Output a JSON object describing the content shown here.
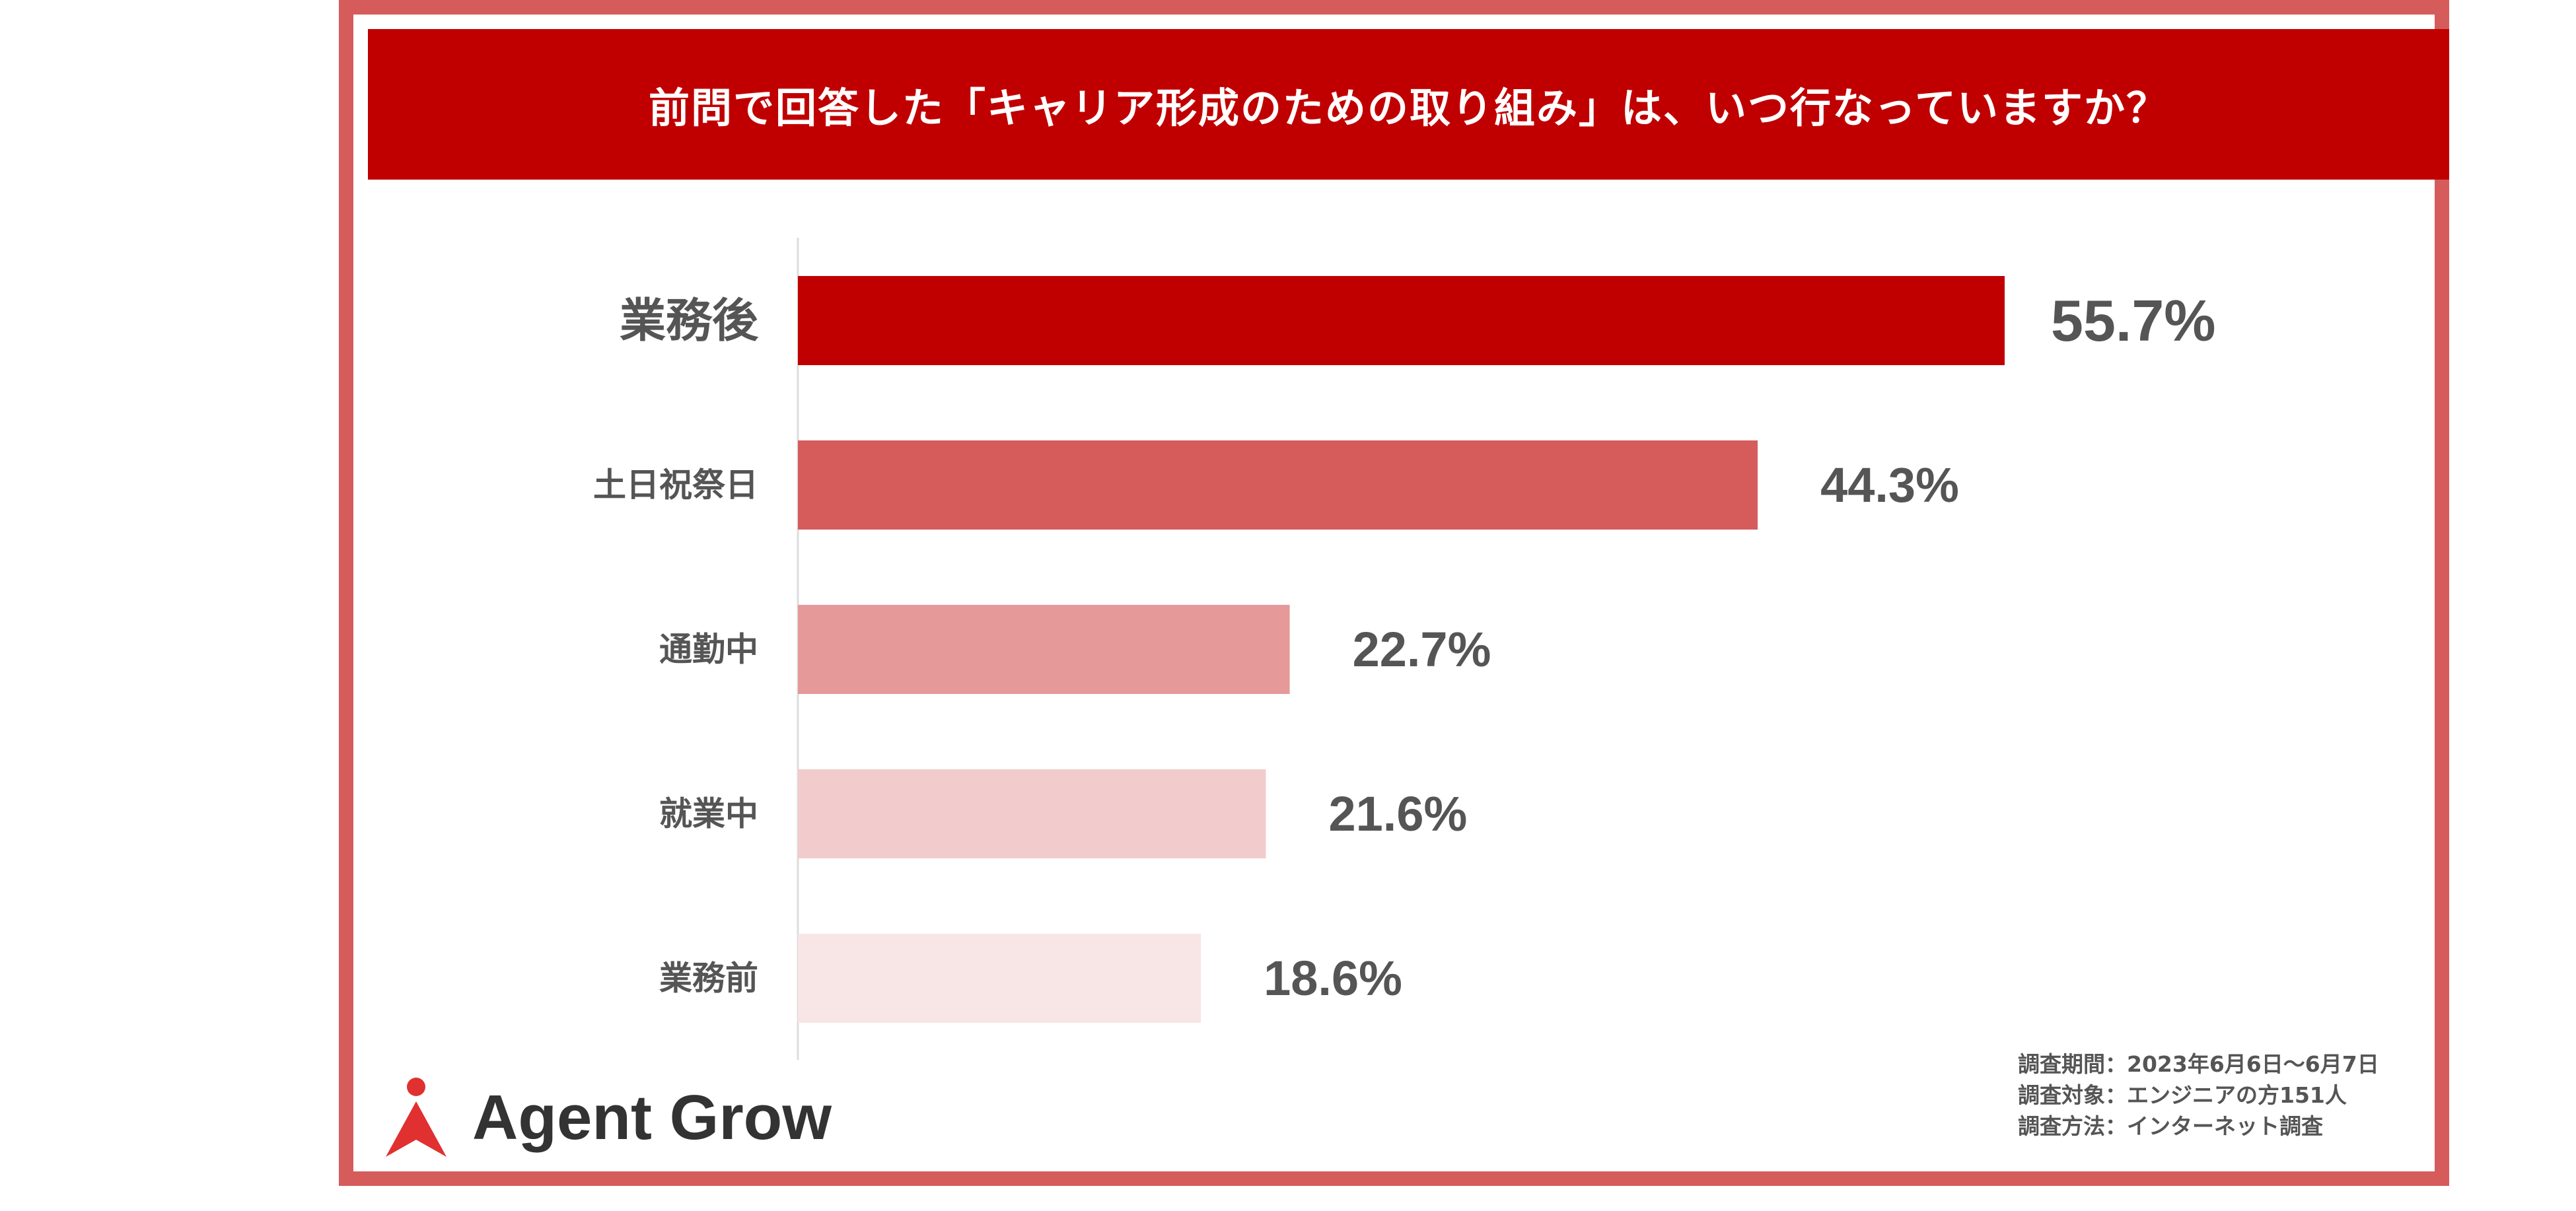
{
  "title": "前問で回答した「キャリア形成のための取り組み」は、いつ行なっていますか？",
  "chart_data": {
    "type": "bar",
    "orientation": "horizontal",
    "categories": [
      "業務後",
      "土日祝祭日",
      "通勤中",
      "就業中",
      "業務前"
    ],
    "values": [
      55.7,
      44.3,
      22.7,
      21.6,
      18.6
    ],
    "value_labels": [
      "55.7%",
      "44.3%",
      "22.7%",
      "21.6%",
      "18.6%"
    ],
    "unit": "%",
    "xlim": [
      0,
      100
    ],
    "highlighted_category": "業務後",
    "colors": [
      "#c00000",
      "#d65c5c",
      "#e59999",
      "#f2cccc",
      "#f8e5e5"
    ],
    "label_colors": [
      "#c00000",
      "#555555",
      "#555555",
      "#555555",
      "#555555"
    ],
    "grid": false
  },
  "logo": {
    "text": "Agent Grow",
    "icon": "agent-grow-logo-icon"
  },
  "survey": {
    "period": "調査期間：2023年6月6日～6月7日",
    "target": "調査対象：エンジニアの方151人",
    "method": "調査方法：インターネット調査"
  }
}
